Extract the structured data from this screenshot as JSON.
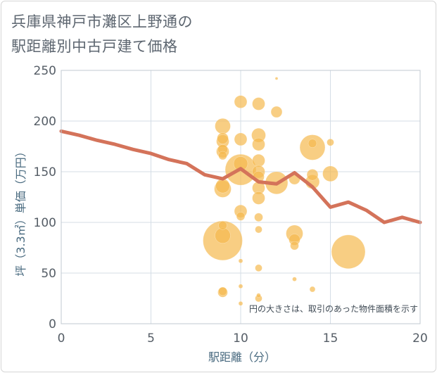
{
  "title_line1": "兵庫県神戸市灘区上野通の",
  "title_line2": "駅距離別中古戸建て価格",
  "chart_data": {
    "type": "scatter",
    "title": "兵庫県神戸市灘区上野通の駅距離別中古戸建て価格",
    "xlabel": "駅距離（分）",
    "ylabel": "坪（3.3㎡）単価（万円）",
    "xlim": [
      0,
      20
    ],
    "ylim": [
      0,
      250
    ],
    "xticks": [
      0,
      5,
      10,
      15,
      20
    ],
    "yticks": [
      0,
      50,
      100,
      150,
      200,
      250
    ],
    "grid": true,
    "note": "円の大きさは、取引のあった物件面積を示す",
    "colors": {
      "bubble": "#f5b94f",
      "line": "#d4735a",
      "grid": "#d4dde6",
      "axis": "#c0c8d0"
    },
    "points": [
      {
        "x": 9,
        "y": 82,
        "s": 28
      },
      {
        "x": 9,
        "y": 87,
        "s": 11
      },
      {
        "x": 9,
        "y": 97,
        "s": 6
      },
      {
        "x": 9,
        "y": 133,
        "s": 12
      },
      {
        "x": 9,
        "y": 136,
        "s": 10
      },
      {
        "x": 9,
        "y": 166,
        "s": 6
      },
      {
        "x": 9,
        "y": 170,
        "s": 9
      },
      {
        "x": 9,
        "y": 172,
        "s": 7
      },
      {
        "x": 9,
        "y": 180,
        "s": 9
      },
      {
        "x": 9,
        "y": 183,
        "s": 8
      },
      {
        "x": 9,
        "y": 195,
        "s": 11
      },
      {
        "x": 9,
        "y": 31,
        "s": 7
      },
      {
        "x": 9,
        "y": 32,
        "s": 6
      },
      {
        "x": 10,
        "y": 152,
        "s": 22
      },
      {
        "x": 10,
        "y": 158,
        "s": 10
      },
      {
        "x": 10,
        "y": 111,
        "s": 9
      },
      {
        "x": 10,
        "y": 106,
        "s": 6
      },
      {
        "x": 10,
        "y": 182,
        "s": 9
      },
      {
        "x": 10,
        "y": 219,
        "s": 9
      },
      {
        "x": 10,
        "y": 62,
        "s": 3
      },
      {
        "x": 10,
        "y": 37,
        "s": 3
      },
      {
        "x": 10,
        "y": 20,
        "s": 3
      },
      {
        "x": 11,
        "y": 217,
        "s": 9
      },
      {
        "x": 11,
        "y": 186,
        "s": 10
      },
      {
        "x": 11,
        "y": 177,
        "s": 9
      },
      {
        "x": 11,
        "y": 161,
        "s": 9
      },
      {
        "x": 11,
        "y": 150,
        "s": 9
      },
      {
        "x": 11,
        "y": 145,
        "s": 8
      },
      {
        "x": 11,
        "y": 134,
        "s": 9
      },
      {
        "x": 11,
        "y": 124,
        "s": 9
      },
      {
        "x": 11,
        "y": 105,
        "s": 6
      },
      {
        "x": 11,
        "y": 93,
        "s": 5
      },
      {
        "x": 11,
        "y": 55,
        "s": 5
      },
      {
        "x": 11,
        "y": 28,
        "s": 3
      },
      {
        "x": 11,
        "y": 25,
        "s": 5
      },
      {
        "x": 12,
        "y": 139,
        "s": 16
      },
      {
        "x": 12,
        "y": 209,
        "s": 8
      },
      {
        "x": 12,
        "y": 242,
        "s": 2
      },
      {
        "x": 13,
        "y": 89,
        "s": 12
      },
      {
        "x": 13,
        "y": 83,
        "s": 8
      },
      {
        "x": 13,
        "y": 77,
        "s": 6
      },
      {
        "x": 13,
        "y": 143,
        "s": 8
      },
      {
        "x": 13,
        "y": 44,
        "s": 3
      },
      {
        "x": 14,
        "y": 174,
        "s": 18
      },
      {
        "x": 14,
        "y": 178,
        "s": 6
      },
      {
        "x": 14,
        "y": 140,
        "s": 10
      },
      {
        "x": 14,
        "y": 147,
        "s": 8
      },
      {
        "x": 14,
        "y": 34,
        "s": 4
      },
      {
        "x": 15,
        "y": 148,
        "s": 11
      },
      {
        "x": 15,
        "y": 179,
        "s": 5
      },
      {
        "x": 16,
        "y": 71,
        "s": 24
      }
    ],
    "line": [
      {
        "x": 0,
        "y": 190
      },
      {
        "x": 1,
        "y": 186
      },
      {
        "x": 2,
        "y": 181
      },
      {
        "x": 3,
        "y": 177
      },
      {
        "x": 4,
        "y": 172
      },
      {
        "x": 5,
        "y": 168
      },
      {
        "x": 6,
        "y": 162
      },
      {
        "x": 7,
        "y": 158
      },
      {
        "x": 8,
        "y": 147
      },
      {
        "x": 9,
        "y": 143
      },
      {
        "x": 10,
        "y": 153
      },
      {
        "x": 11,
        "y": 140
      },
      {
        "x": 12,
        "y": 138
      },
      {
        "x": 13,
        "y": 149
      },
      {
        "x": 14,
        "y": 135
      },
      {
        "x": 15,
        "y": 115
      },
      {
        "x": 16,
        "y": 120
      },
      {
        "x": 17,
        "y": 112
      },
      {
        "x": 18,
        "y": 100
      },
      {
        "x": 19,
        "y": 105
      },
      {
        "x": 20,
        "y": 100
      }
    ]
  }
}
